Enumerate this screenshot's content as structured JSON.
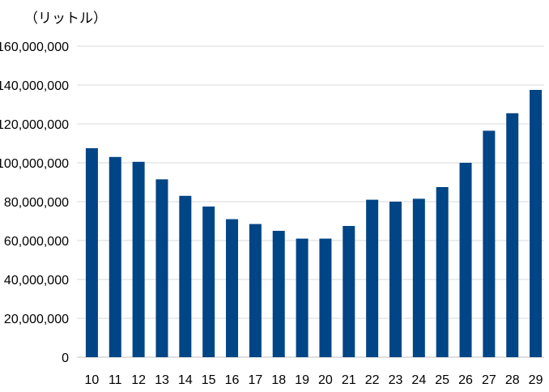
{
  "chart_data": {
    "type": "bar",
    "unit_label": "（リットル）",
    "categories": [
      "10",
      "11",
      "12",
      "13",
      "14",
      "15",
      "16",
      "17",
      "18",
      "19",
      "20",
      "21",
      "22",
      "23",
      "24",
      "25",
      "26",
      "27",
      "28",
      "29"
    ],
    "values": [
      107500000,
      103000000,
      100500000,
      91500000,
      83000000,
      77500000,
      71000000,
      68500000,
      65000000,
      61000000,
      61000000,
      67500000,
      81000000,
      80000000,
      81500000,
      87500000,
      100000000,
      116500000,
      125500000,
      137500000
    ],
    "y_ticks": [
      "0",
      "20,000,000",
      "40,000,000",
      "60,000,000",
      "80,000,000",
      "100,000,000",
      "120,000,000",
      "140,000,000",
      "160,000,000"
    ],
    "ylim": [
      0,
      160000000
    ],
    "grid": true,
    "legend": "none",
    "bar_color": "#004586"
  }
}
